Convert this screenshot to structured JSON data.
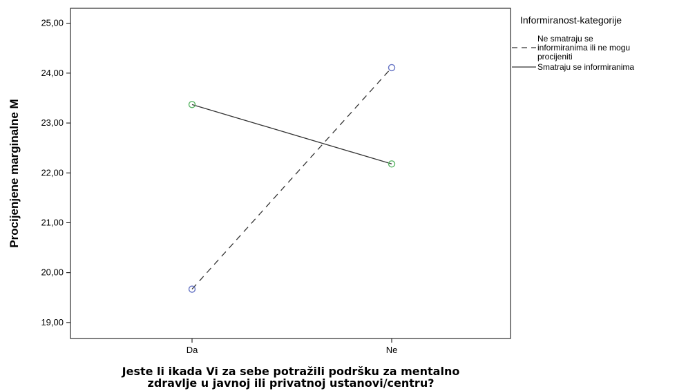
{
  "chart_data": {
    "type": "line",
    "categories": [
      "Da",
      "Ne"
    ],
    "series": [
      {
        "name": "Ne smatraju se informiranima ili ne mogu procijeniti",
        "name_lines": [
          "Ne smatraju se",
          "informiranima ili ne mogu",
          "procijeniti"
        ],
        "values": [
          19.67,
          24.11
        ],
        "line_style": "dashed",
        "marker_color": "#6674c4"
      },
      {
        "name": "Smatraju se informiranima",
        "values": [
          23.37,
          22.18
        ],
        "line_style": "solid",
        "marker_color": "#5ab565"
      }
    ],
    "ylim": [
      18.68,
      25.3
    ],
    "yticks": [
      19,
      20,
      21,
      22,
      23,
      24,
      25
    ],
    "ytick_labels": [
      "19,00",
      "20,00",
      "21,00",
      "22,00",
      "23,00",
      "24,00",
      "25,00"
    ],
    "ylabel": "Procijenjene marginalne M",
    "xlabel_lines": [
      "Jeste li ikada Vi za sebe potražili podršku za mentalno",
      "zdravlje u javnoj ili privatnoj ustanovi/centru?"
    ],
    "legend_title": "Informiranost-kategorije",
    "legend_position": "right",
    "grid": false
  },
  "colors": {
    "line": "#333333",
    "axis": "#000000"
  }
}
